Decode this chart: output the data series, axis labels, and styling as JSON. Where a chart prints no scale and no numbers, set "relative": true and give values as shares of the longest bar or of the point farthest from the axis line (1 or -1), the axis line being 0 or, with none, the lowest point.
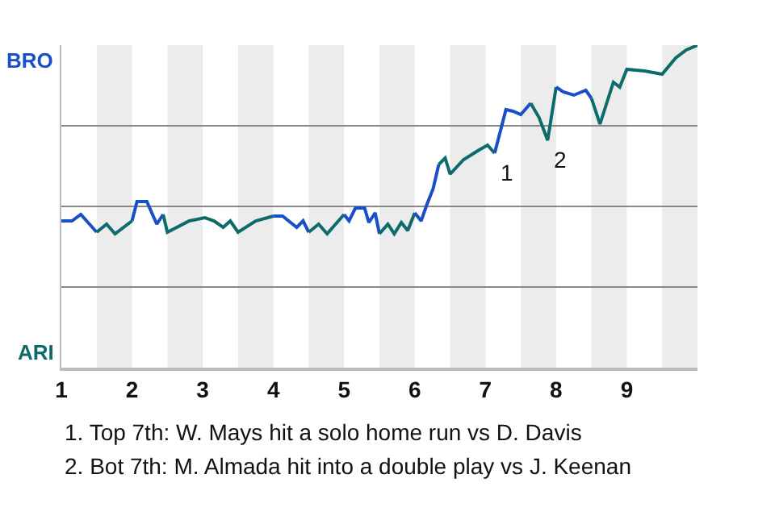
{
  "chart_data": {
    "type": "line",
    "relative": true,
    "series": [
      {
        "color": "#1a4fc8",
        "x": [
          1,
          1.15,
          1.275,
          1.5
        ],
        "values": [
          0.455,
          0.455,
          0.475,
          0.42
        ]
      },
      {
        "color": "#0d6b6b",
        "x": [
          1.5,
          1.64,
          1.76,
          2.0
        ],
        "values": [
          0.42,
          0.445,
          0.415,
          0.455
        ]
      },
      {
        "color": "#1a4fc8",
        "x": [
          2.0,
          2.07,
          2.21,
          2.35,
          2.44
        ],
        "values": [
          0.455,
          0.515,
          0.515,
          0.445,
          0.475
        ]
      },
      {
        "color": "#0d6b6b",
        "x": [
          2.44,
          2.5,
          2.81,
          3.03,
          3.16,
          3.29,
          3.39,
          3.5,
          3.75,
          4.0
        ],
        "values": [
          0.475,
          0.42,
          0.455,
          0.465,
          0.455,
          0.435,
          0.455,
          0.42,
          0.455,
          0.47
        ]
      },
      {
        "color": "#1a4fc8",
        "x": [
          4.0,
          4.13,
          4.33,
          4.42,
          4.5
        ],
        "values": [
          0.47,
          0.47,
          0.435,
          0.455,
          0.42
        ]
      },
      {
        "color": "#0d6b6b",
        "x": [
          4.5,
          4.64,
          4.76,
          5.0
        ],
        "values": [
          0.42,
          0.445,
          0.415,
          0.475
        ]
      },
      {
        "color": "#1a4fc8",
        "x": [
          5.0,
          5.07,
          5.16,
          5.29,
          5.35,
          5.44,
          5.5
        ],
        "values": [
          0.475,
          0.455,
          0.495,
          0.495,
          0.45,
          0.48,
          0.415
        ]
      },
      {
        "color": "#0d6b6b",
        "x": [
          5.5,
          5.62,
          5.71,
          5.81,
          5.9,
          6.0
        ],
        "values": [
          0.415,
          0.445,
          0.415,
          0.45,
          0.425,
          0.48
        ]
      },
      {
        "color": "#1a4fc8",
        "x": [
          6.0,
          6.09,
          6.17,
          6.26,
          6.34
        ],
        "values": [
          0.48,
          0.455,
          0.505,
          0.555,
          0.63
        ]
      },
      {
        "color": "#0d6b6b",
        "x": [
          6.34,
          6.43,
          6.5,
          6.69,
          6.91,
          7.03,
          7.13
        ],
        "values": [
          0.63,
          0.65,
          0.6,
          0.645,
          0.675,
          0.69,
          0.665
        ]
      },
      {
        "color": "#1a4fc8",
        "x": [
          7.13,
          7.29,
          7.39,
          7.5,
          7.64
        ],
        "values": [
          0.665,
          0.8,
          0.795,
          0.785,
          0.82
        ]
      },
      {
        "color": "#0d6b6b",
        "x": [
          7.64,
          7.76,
          7.88,
          8.0
        ],
        "values": [
          0.82,
          0.775,
          0.705,
          0.87
        ]
      },
      {
        "color": "#1a4fc8",
        "x": [
          8.0,
          8.1,
          8.25,
          8.42,
          8.5
        ],
        "values": [
          0.87,
          0.855,
          0.845,
          0.86,
          0.835
        ]
      },
      {
        "color": "#0d6b6b",
        "x": [
          8.5,
          8.62,
          8.81,
          8.9,
          9.0,
          9.25,
          9.5,
          9.69,
          9.84,
          10.0
        ],
        "values": [
          0.835,
          0.755,
          0.885,
          0.87,
          0.925,
          0.92,
          0.91,
          0.96,
          0.985,
          1.0
        ]
      }
    ],
    "xlim": [
      1,
      10
    ],
    "xticks": [
      1,
      2,
      3,
      4,
      5,
      6,
      7,
      8,
      9
    ],
    "grid": "y",
    "bands": [
      {
        "axis": "x",
        "from": 1.5,
        "to": 2,
        "color": "#ececec"
      },
      {
        "axis": "x",
        "from": 2.5,
        "to": 3,
        "color": "#ececec"
      },
      {
        "axis": "x",
        "from": 3.5,
        "to": 4,
        "color": "#ececec"
      },
      {
        "axis": "x",
        "from": 4.5,
        "to": 5,
        "color": "#ececec"
      },
      {
        "axis": "x",
        "from": 5.5,
        "to": 6,
        "color": "#ececec"
      },
      {
        "axis": "x",
        "from": 6.5,
        "to": 7,
        "color": "#ececec"
      },
      {
        "axis": "x",
        "from": 7.5,
        "to": 8,
        "color": "#ececec"
      },
      {
        "axis": "x",
        "from": 8.5,
        "to": 9,
        "color": "#ececec"
      },
      {
        "axis": "x",
        "from": 9.5,
        "to": 10,
        "color": "#ececec"
      }
    ],
    "annotations": [
      "BRO",
      "ARI",
      {
        "text": "1",
        "x": 7.13,
        "y": 0.665
      },
      {
        "text": "2",
        "x": 7.88,
        "y": 0.705
      },
      "1. Top 7th: W. Mays hit a solo home run vs D. Davis",
      "2. Bot 7th: M. Almada hit into a double play vs J. Keenan"
    ]
  }
}
